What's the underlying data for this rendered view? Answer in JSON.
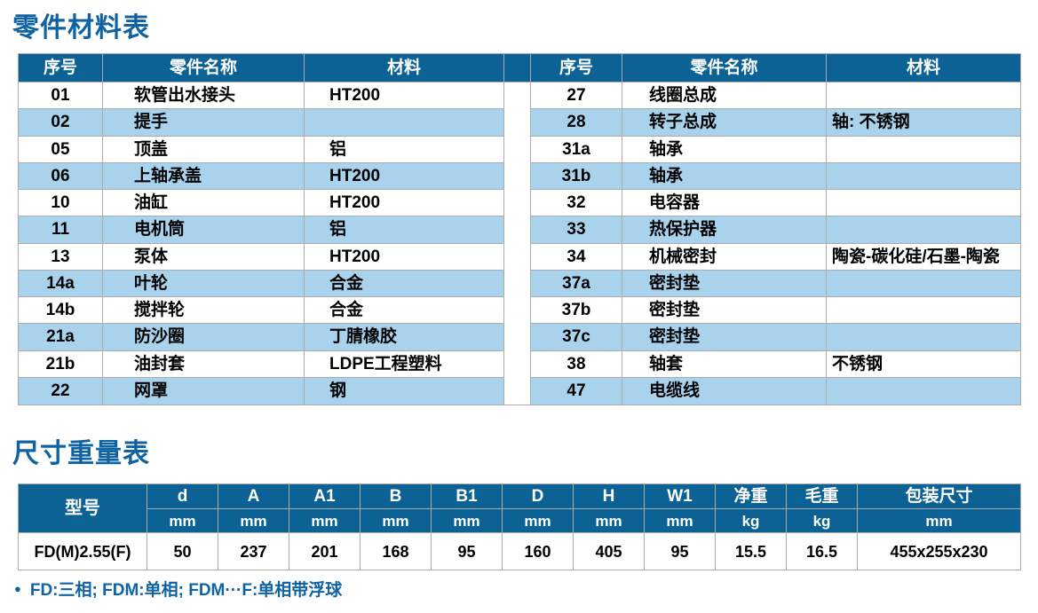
{
  "colors": {
    "header_blue": "#0d6295",
    "row_blue": "#a9d2ed",
    "title_blue": "#0f63a2",
    "border_gray": "#ababab",
    "text_black": "#000000"
  },
  "parts_table": {
    "title": "零件材料表",
    "columns": [
      "序号",
      "零件名称",
      "材料"
    ],
    "left_rows": [
      {
        "no": "01",
        "name": "软管出水接头",
        "material": "HT200"
      },
      {
        "no": "02",
        "name": "提手",
        "material": ""
      },
      {
        "no": "05",
        "name": "顶盖",
        "material": "铝"
      },
      {
        "no": "06",
        "name": "上轴承盖",
        "material": "HT200"
      },
      {
        "no": "10",
        "name": "油缸",
        "material": "HT200"
      },
      {
        "no": "11",
        "name": "电机筒",
        "material": "铝"
      },
      {
        "no": "13",
        "name": "泵体",
        "material": "HT200"
      },
      {
        "no": "14a",
        "name": "叶轮",
        "material": "合金"
      },
      {
        "no": "14b",
        "name": "搅拌轮",
        "material": "合金"
      },
      {
        "no": "21a",
        "name": "防沙圈",
        "material": "丁腈橡胶"
      },
      {
        "no": "21b",
        "name": "油封套",
        "material": "LDPE工程塑料"
      },
      {
        "no": "22",
        "name": "网罩",
        "material": "钢"
      }
    ],
    "right_rows": [
      {
        "no": "27",
        "name": "线圈总成",
        "material": ""
      },
      {
        "no": "28",
        "name": "转子总成",
        "material": "轴: 不锈钢"
      },
      {
        "no": "31a",
        "name": "轴承",
        "material": ""
      },
      {
        "no": "31b",
        "name": "轴承",
        "material": ""
      },
      {
        "no": "32",
        "name": "电容器",
        "material": ""
      },
      {
        "no": "33",
        "name": "热保护器",
        "material": ""
      },
      {
        "no": "34",
        "name": "机械密封",
        "material": "陶瓷-碳化硅/石墨-陶瓷"
      },
      {
        "no": "37a",
        "name": "密封垫",
        "material": ""
      },
      {
        "no": "37b",
        "name": "密封垫",
        "material": ""
      },
      {
        "no": "37c",
        "name": "密封垫",
        "material": ""
      },
      {
        "no": "38",
        "name": "轴套",
        "material": "不锈钢"
      },
      {
        "no": "47",
        "name": "电缆线",
        "material": ""
      }
    ]
  },
  "dimensions_table": {
    "title": "尺寸重量表",
    "model_header": "型号",
    "columns": [
      {
        "label": "d",
        "unit": "mm"
      },
      {
        "label": "A",
        "unit": "mm"
      },
      {
        "label": "A1",
        "unit": "mm"
      },
      {
        "label": "B",
        "unit": "mm"
      },
      {
        "label": "B1",
        "unit": "mm"
      },
      {
        "label": "D",
        "unit": "mm"
      },
      {
        "label": "H",
        "unit": "mm"
      },
      {
        "label": "W1",
        "unit": "mm"
      },
      {
        "label": "净重",
        "unit": "kg"
      },
      {
        "label": "毛重",
        "unit": "kg"
      },
      {
        "label": "包装尺寸",
        "unit": "mm"
      }
    ],
    "rows": [
      {
        "model": "FD(M)2.55(F)",
        "values": [
          "50",
          "237",
          "201",
          "168",
          "95",
          "160",
          "405",
          "95",
          "15.5",
          "16.5",
          "455x255x230"
        ]
      }
    ]
  },
  "footnote": {
    "bullet": "●",
    "text": "FD:三相; FDM:单相; FDM···F:单相带浮球"
  }
}
